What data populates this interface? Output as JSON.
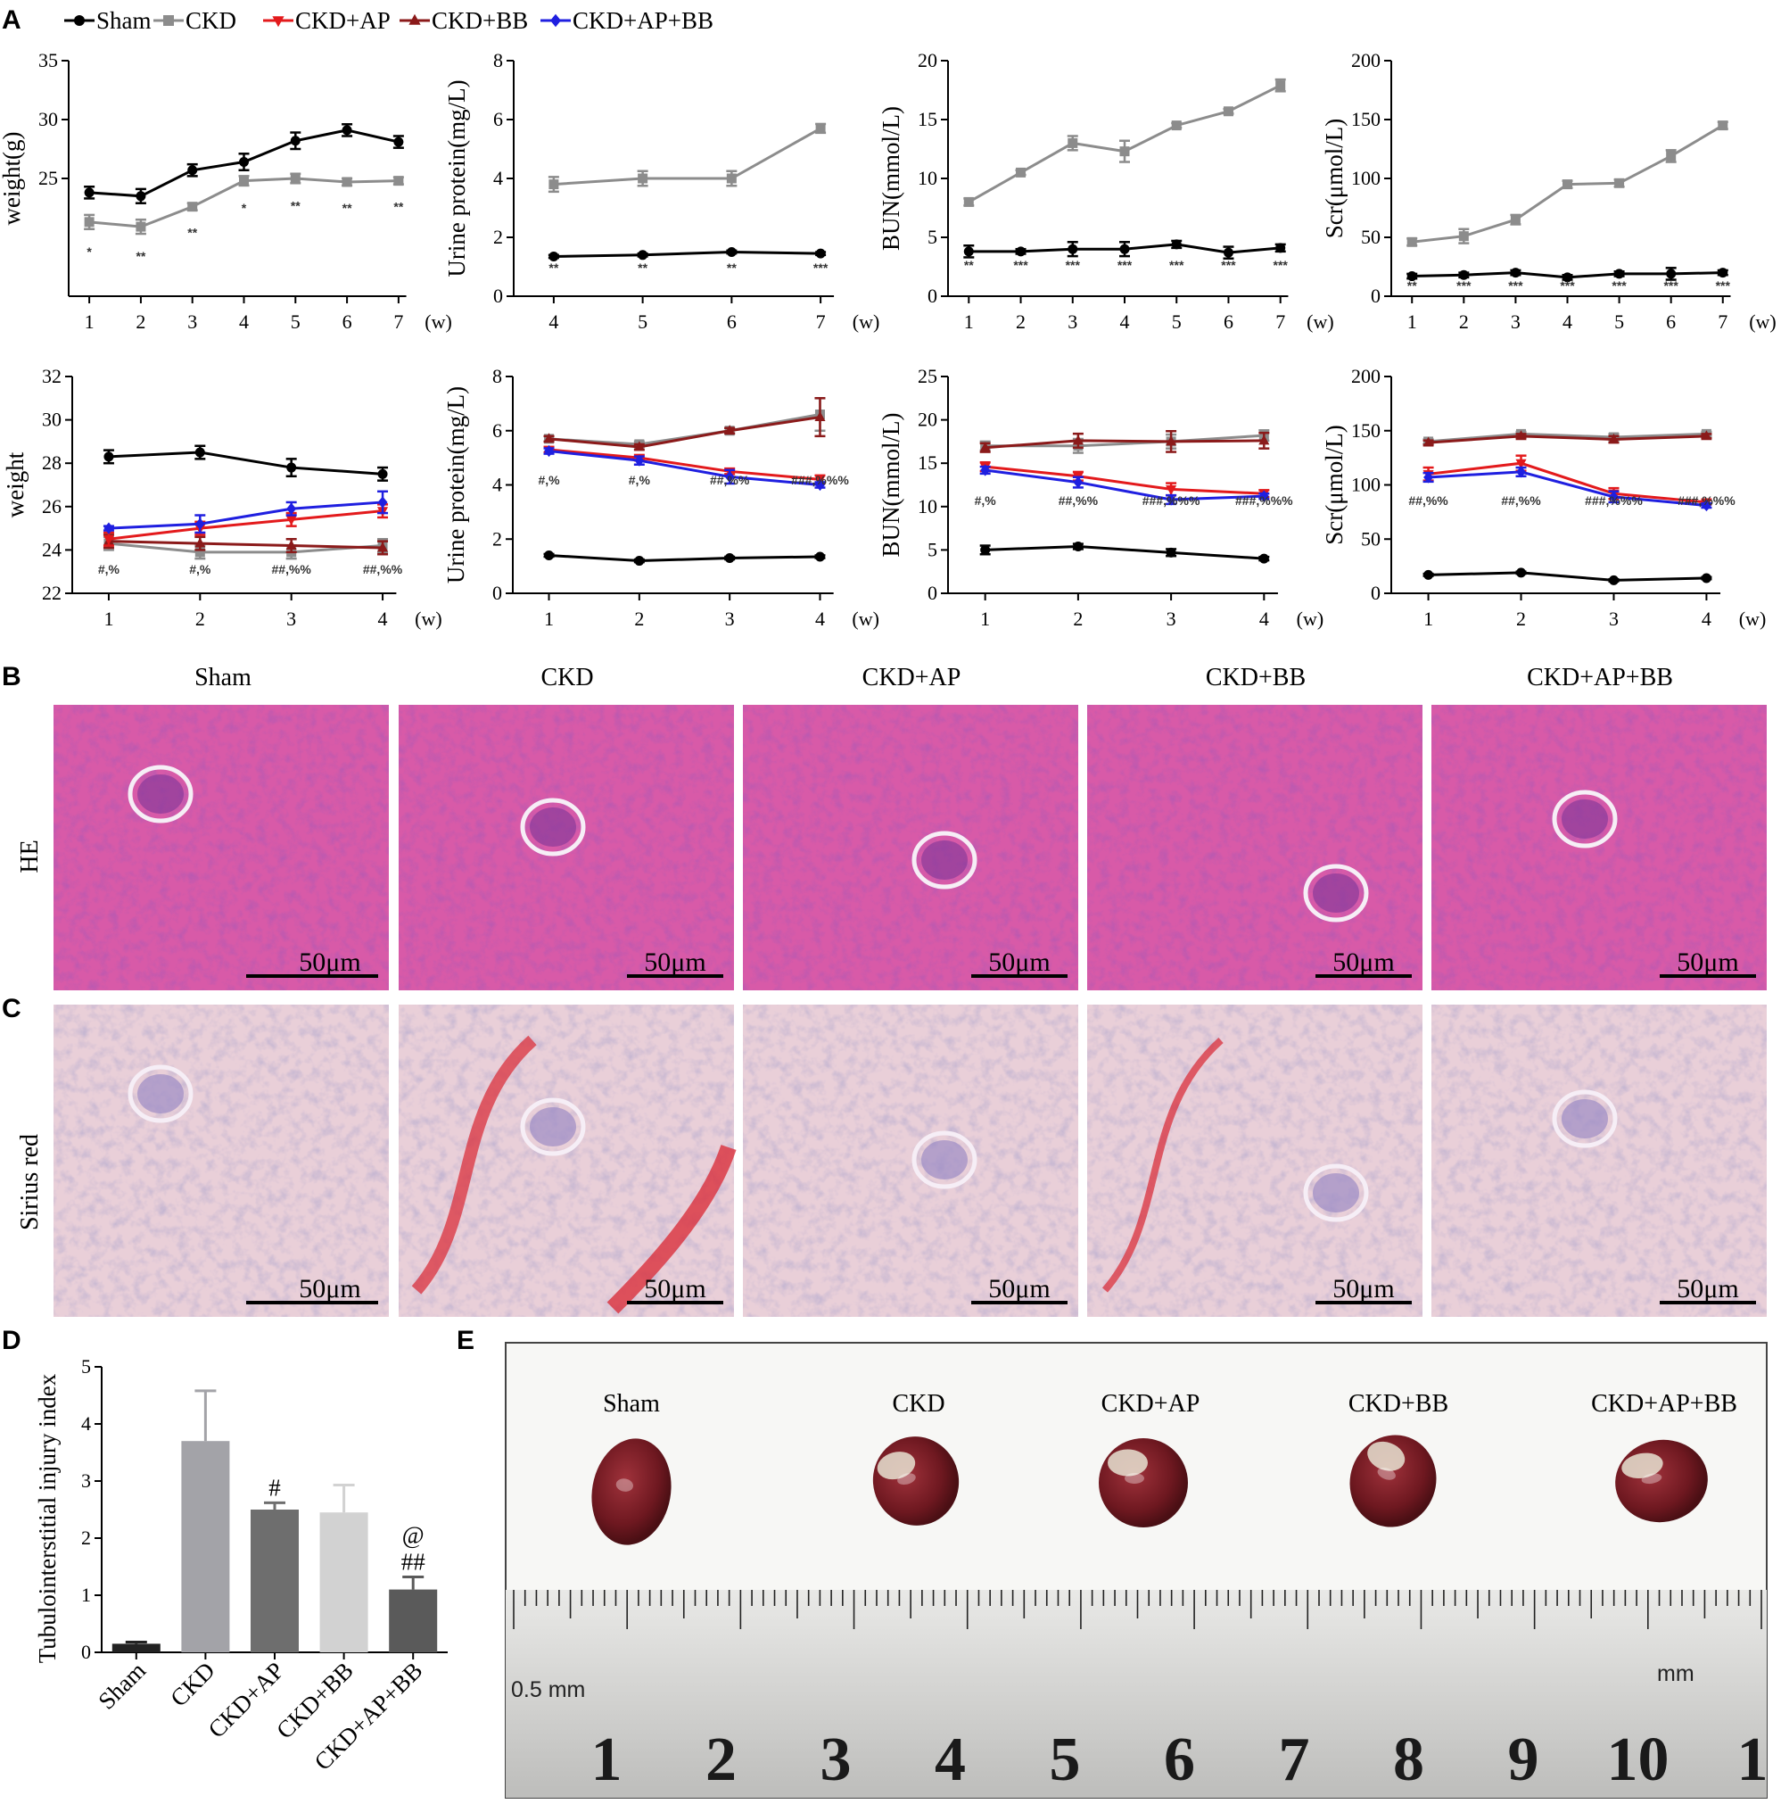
{
  "panels": {
    "A": "A",
    "B": "B",
    "C": "C",
    "D": "D",
    "E": "E"
  },
  "colors": {
    "Sham": "#000000",
    "CKD": "#8c8c8c",
    "CKD+AP": "#e31a1c",
    "CKD+BB": "#8b1a1a",
    "CKD+AP+BB": "#1f1fe0"
  },
  "legend": [
    {
      "name": "Sham",
      "marker": "circle"
    },
    {
      "name": "CKD",
      "marker": "square"
    },
    {
      "name": "CKD+AP",
      "marker": "triangle-down"
    },
    {
      "name": "CKD+BB",
      "marker": "triangle-up"
    },
    {
      "name": "CKD+AP+BB",
      "marker": "diamond"
    }
  ],
  "unit_w": "(w)",
  "chart_data": [
    {
      "type": "line",
      "id": "a1",
      "ylabel": "weight(g)",
      "ylim": [
        15,
        35
      ],
      "yticks": [
        25,
        30,
        35
      ],
      "ytick_min_draw": 25,
      "x": [
        1,
        2,
        3,
        4,
        5,
        6,
        7
      ],
      "series": [
        {
          "name": "Sham",
          "values": [
            23.8,
            23.5,
            25.7,
            26.4,
            28.2,
            29.1,
            28.1
          ],
          "err": [
            0.5,
            0.6,
            0.5,
            0.7,
            0.7,
            0.5,
            0.5
          ]
        },
        {
          "name": "CKD",
          "values": [
            21.3,
            20.9,
            22.6,
            24.8,
            25.0,
            24.7,
            24.8
          ],
          "err": [
            0.6,
            0.6,
            0.3,
            0.4,
            0.4,
            0.3,
            0.3
          ]
        }
      ],
      "sig": [
        "*",
        "**",
        "**",
        "*",
        "**",
        "**",
        "**"
      ]
    },
    {
      "type": "line",
      "id": "a2",
      "ylabel": "Urine protein(mg/L)",
      "ylim": [
        0,
        8
      ],
      "yticks": [
        0,
        2,
        4,
        6,
        8
      ],
      "x": [
        4,
        5,
        6,
        7
      ],
      "series": [
        {
          "name": "Sham",
          "values": [
            1.35,
            1.4,
            1.5,
            1.45
          ],
          "err": [
            0.05,
            0.05,
            0.05,
            0.05
          ]
        },
        {
          "name": "CKD",
          "values": [
            3.8,
            4.0,
            4.0,
            5.7
          ],
          "err": [
            0.25,
            0.25,
            0.25,
            0.15
          ]
        }
      ],
      "sig": [
        "**",
        "**",
        "**",
        "***"
      ]
    },
    {
      "type": "line",
      "id": "a3",
      "ylabel": "BUN(mmol/L)",
      "ylim": [
        0,
        20
      ],
      "yticks": [
        0,
        5,
        10,
        15,
        20
      ],
      "x": [
        1,
        2,
        3,
        4,
        5,
        6,
        7
      ],
      "series": [
        {
          "name": "Sham",
          "values": [
            3.8,
            3.8,
            4.0,
            4.0,
            4.4,
            3.7,
            4.1
          ],
          "err": [
            0.5,
            0.2,
            0.6,
            0.6,
            0.3,
            0.5,
            0.3
          ]
        },
        {
          "name": "CKD",
          "values": [
            8.0,
            10.5,
            13.0,
            12.3,
            14.5,
            15.7,
            17.9
          ],
          "err": [
            0.3,
            0.2,
            0.6,
            0.9,
            0.2,
            0.2,
            0.5
          ]
        }
      ],
      "sig": [
        "**",
        "***",
        "***",
        "***",
        "***",
        "***",
        "***"
      ]
    },
    {
      "type": "line",
      "id": "a4",
      "ylabel": "Scr(μmol/L)",
      "ylim": [
        0,
        200
      ],
      "yticks": [
        0,
        50,
        100,
        150,
        200
      ],
      "x": [
        1,
        2,
        3,
        4,
        5,
        6,
        7
      ],
      "series": [
        {
          "name": "Sham",
          "values": [
            17,
            18,
            20,
            16,
            19,
            19,
            20
          ],
          "err": [
            2,
            2,
            2,
            2,
            2,
            5,
            2
          ]
        },
        {
          "name": "CKD",
          "values": [
            46,
            51,
            65,
            95,
            96,
            119,
            145
          ],
          "err": [
            3,
            6,
            4,
            3,
            3,
            5,
            3
          ]
        }
      ],
      "sig": [
        "**",
        "***",
        "***",
        "***",
        "***",
        "***",
        "***"
      ]
    },
    {
      "type": "line",
      "id": "b1",
      "ylabel": "weight",
      "ylim": [
        22,
        32
      ],
      "yticks": [
        22,
        24,
        26,
        28,
        30,
        32
      ],
      "x": [
        1,
        2,
        3,
        4
      ],
      "series": [
        {
          "name": "Sham",
          "values": [
            28.3,
            28.5,
            27.8,
            27.5
          ],
          "err": [
            0.3,
            0.3,
            0.4,
            0.3
          ]
        },
        {
          "name": "CKD",
          "values": [
            24.3,
            23.9,
            23.9,
            24.2
          ],
          "err": [
            0.3,
            0.3,
            0.3,
            0.3
          ]
        },
        {
          "name": "CKD+BB",
          "values": [
            24.4,
            24.3,
            24.2,
            24.1
          ],
          "err": [
            0.3,
            0.3,
            0.3,
            0.3
          ]
        },
        {
          "name": "CKD+AP",
          "values": [
            24.5,
            25.0,
            25.4,
            25.8
          ],
          "err": [
            0.3,
            0.3,
            0.3,
            0.3
          ]
        },
        {
          "name": "CKD+AP+BB",
          "values": [
            25.0,
            25.2,
            25.9,
            26.2
          ],
          "err": [
            0.1,
            0.4,
            0.3,
            0.5
          ]
        }
      ],
      "sig": [
        "#,%",
        "#,%",
        "##,%%",
        "##,%%"
      ]
    },
    {
      "type": "line",
      "id": "b2",
      "ylabel": "Urine protein(mg/L)",
      "ylim": [
        0,
        8
      ],
      "yticks": [
        0,
        2,
        4,
        6,
        8
      ],
      "x": [
        1,
        2,
        3,
        4
      ],
      "series": [
        {
          "name": "Sham",
          "values": [
            1.4,
            1.2,
            1.3,
            1.35
          ],
          "err": [
            0.05,
            0.05,
            0.05,
            0.05
          ]
        },
        {
          "name": "CKD",
          "values": [
            5.7,
            5.5,
            6.0,
            6.6
          ],
          "err": [
            0.1,
            0.1,
            0.1,
            0.6
          ]
        },
        {
          "name": "CKD+BB",
          "values": [
            5.7,
            5.4,
            6.0,
            6.5
          ],
          "err": [
            0.1,
            0.1,
            0.1,
            0.7
          ]
        },
        {
          "name": "CKD+AP",
          "values": [
            5.3,
            5.0,
            4.5,
            4.2
          ],
          "err": [
            0.1,
            0.1,
            0.1,
            0.15
          ]
        },
        {
          "name": "CKD+AP+BB",
          "values": [
            5.25,
            4.9,
            4.3,
            4.0
          ],
          "err": [
            0.1,
            0.15,
            0.25,
            0.1
          ]
        }
      ],
      "sig": [
        "#,%",
        "#,%",
        "##,%%",
        "###,%%%"
      ]
    },
    {
      "type": "line",
      "id": "b3",
      "ylabel": "BUN(mmol/L)",
      "ylim": [
        0,
        25
      ],
      "yticks": [
        0,
        5,
        10,
        15,
        20,
        25
      ],
      "x": [
        1,
        2,
        3,
        4
      ],
      "series": [
        {
          "name": "Sham",
          "values": [
            5.0,
            5.4,
            4.7,
            4.0
          ],
          "err": [
            0.5,
            0.3,
            0.4,
            0.2
          ]
        },
        {
          "name": "CKD",
          "values": [
            17.0,
            17.0,
            17.5,
            18.2
          ],
          "err": [
            0.5,
            0.8,
            0.8,
            0.6
          ]
        },
        {
          "name": "CKD+BB",
          "values": [
            16.8,
            17.6,
            17.5,
            17.6
          ],
          "err": [
            0.5,
            0.8,
            1.2,
            0.9
          ]
        },
        {
          "name": "CKD+AP",
          "values": [
            14.6,
            13.5,
            12.0,
            11.5
          ],
          "err": [
            0.5,
            0.5,
            0.7,
            0.4
          ]
        },
        {
          "name": "CKD+AP+BB",
          "values": [
            14.2,
            12.8,
            10.8,
            11.2
          ],
          "err": [
            0.4,
            0.6,
            0.5,
            0.3
          ]
        }
      ],
      "sig": [
        "#,%",
        "##,%%",
        "###,%%%",
        "###,%%%"
      ]
    },
    {
      "type": "line",
      "id": "b4",
      "ylabel": "Scr(μmol/L)",
      "ylim": [
        0,
        200
      ],
      "yticks": [
        0,
        50,
        100,
        150,
        200
      ],
      "x": [
        1,
        2,
        3,
        4
      ],
      "series": [
        {
          "name": "Sham",
          "values": [
            17,
            19,
            12,
            14
          ],
          "err": [
            1,
            1,
            1,
            1
          ]
        },
        {
          "name": "CKD",
          "values": [
            140,
            147,
            144,
            147
          ],
          "err": [
            2,
            2,
            3,
            2
          ]
        },
        {
          "name": "CKD+BB",
          "values": [
            139,
            145,
            142,
            145
          ],
          "err": [
            2,
            2,
            3,
            2
          ]
        },
        {
          "name": "CKD+AP",
          "values": [
            110,
            120,
            92,
            84
          ],
          "err": [
            6,
            7,
            5,
            2
          ]
        },
        {
          "name": "CKD+AP+BB",
          "values": [
            107,
            112,
            89,
            81
          ],
          "err": [
            4,
            4,
            5,
            2
          ]
        }
      ],
      "sig": [
        "##,%%",
        "##,%%",
        "###,%%%",
        "###,%%%"
      ]
    },
    {
      "type": "bar",
      "id": "d",
      "ylabel": "Tubulointerstitial injury index",
      "ylim": [
        0,
        5
      ],
      "yticks": [
        0,
        1,
        2,
        3,
        4,
        5
      ],
      "categories": [
        "Sham",
        "CKD",
        "CKD+AP",
        "CKD+BB",
        "CKD+AP+BB"
      ],
      "values": [
        0.15,
        3.7,
        2.5,
        2.45,
        1.1
      ],
      "err": [
        0.03,
        0.88,
        0.12,
        0.48,
        0.22
      ],
      "bar_colors": [
        "#222222",
        "#a3a3a8",
        "#6e6e6e",
        "#d2d2d2",
        "#5a5a5a"
      ],
      "annotations": [
        "",
        "",
        "#",
        "",
        "##"
      ],
      "annotations_top": [
        "",
        "",
        "",
        "",
        "@"
      ]
    }
  ],
  "histology": {
    "groups": [
      "Sham",
      "CKD",
      "CKD+AP",
      "CKD+BB",
      "CKD+AP+BB"
    ],
    "row_labels": [
      "HE",
      "Sirius red"
    ],
    "scale": "50μm"
  },
  "kidneys": {
    "labels": [
      "Sham",
      "CKD",
      "CKD+AP",
      "CKD+BB",
      "CKD+AP+BB"
    ],
    "ruler_numbers": [
      "1",
      "2",
      "3",
      "4",
      "5",
      "6",
      "7",
      "8",
      "9",
      "10",
      "1"
    ],
    "ruler_left_text": "0.5 mm",
    "ruler_right_text": "mm"
  }
}
